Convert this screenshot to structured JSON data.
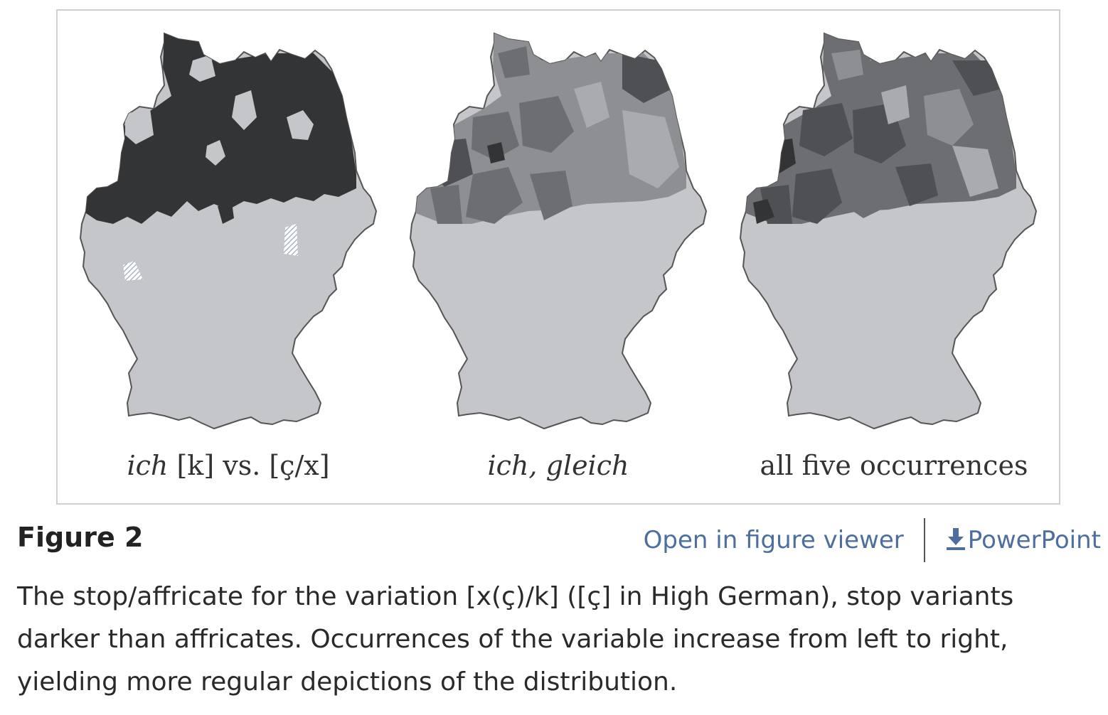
{
  "figure": {
    "panels": [
      {
        "label_italic": "ich",
        "label_rest": " [k] vs. [ç/x]"
      },
      {
        "label_italic": "ich, gleich",
        "label_rest": ""
      },
      {
        "label_italic": "",
        "label_rest": "all five occurrences"
      }
    ],
    "colors": {
      "land": "#c4c6c9",
      "stop_darkest": "#333436",
      "stop_dark": "#4e5053",
      "mid": "#6c6e71",
      "mid_light": "#8d8f92",
      "light": "#a9abae",
      "border": "#555555",
      "hatch": "#9aa8c4"
    }
  },
  "caption": {
    "title": "Figure 2",
    "open_viewer": "Open in figure viewer",
    "powerpoint": "PowerPoint",
    "text": "The stop/affricate for the variation [x(ç)/k] ([ç] in High German), stop variants darker than affricates. Occurrences of the variable increase from left to right, yielding more regular depictions of the distribution."
  }
}
